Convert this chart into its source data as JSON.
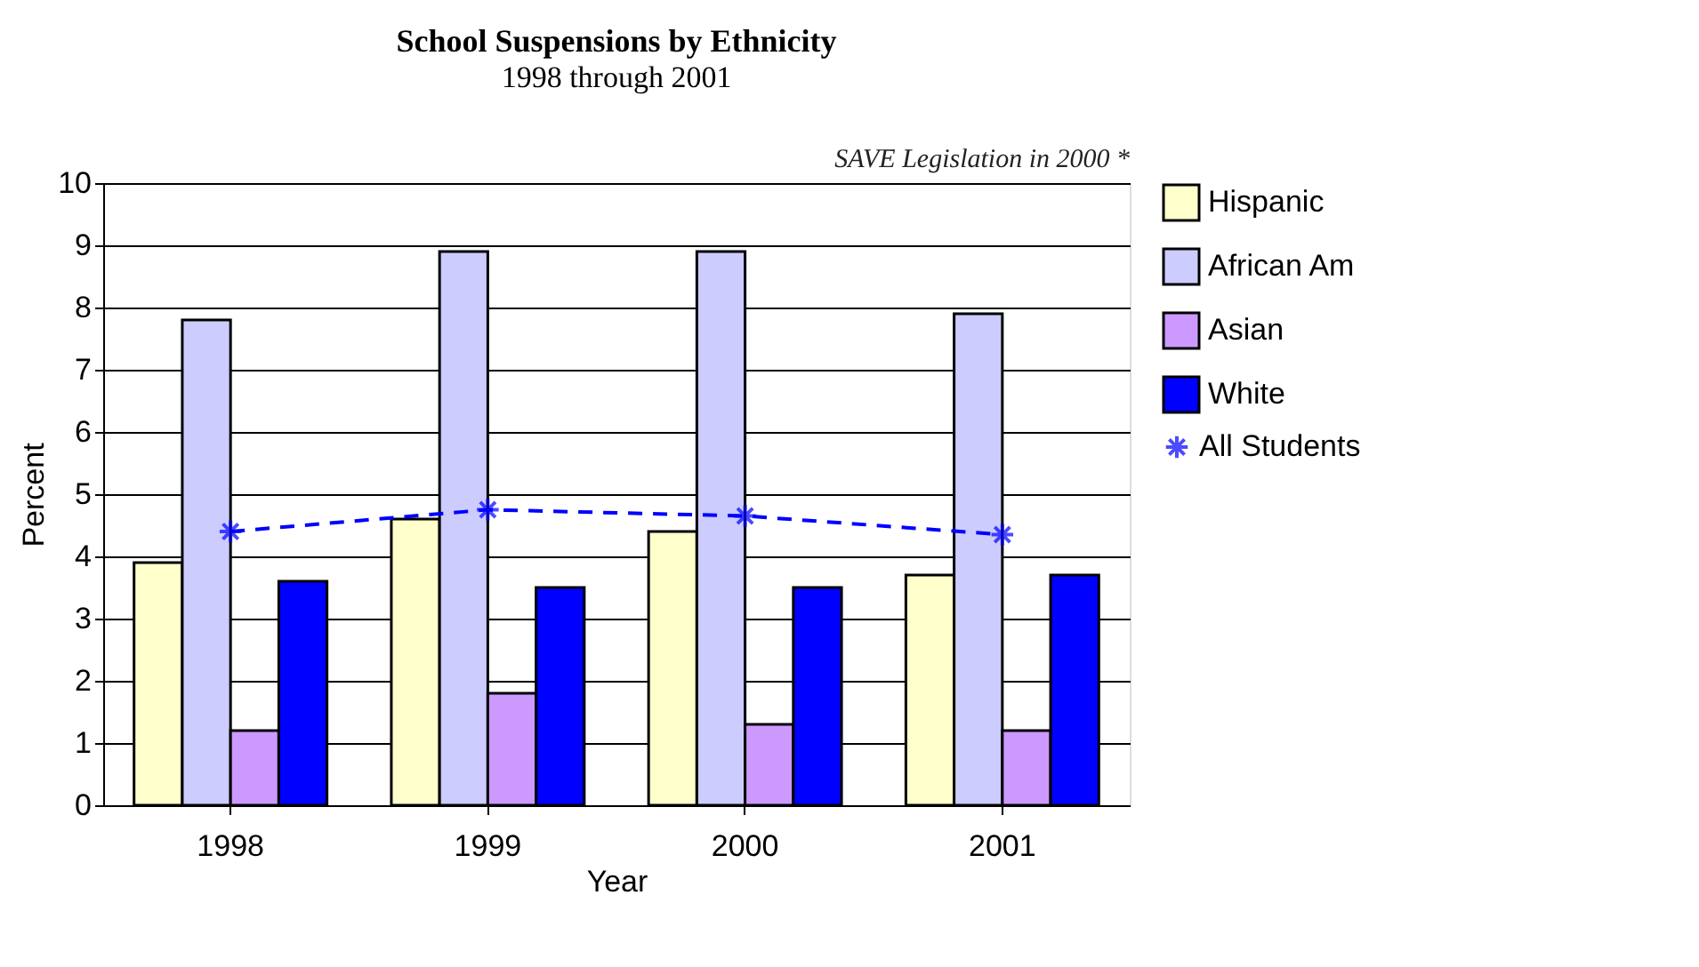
{
  "chart_data": {
    "type": "bar",
    "title": "School Suspensions by Ethnicity",
    "subtitle": "1998 through 2001",
    "xlabel": "Year",
    "ylabel": "Percent",
    "categories": [
      "1998",
      "1999",
      "2000",
      "2001"
    ],
    "series": [
      {
        "name": "Hispanic",
        "color": "#ffffcc",
        "values": [
          3.9,
          4.6,
          4.4,
          3.7
        ]
      },
      {
        "name": "African Am",
        "color": "#ccccff",
        "values": [
          7.8,
          8.9,
          8.9,
          7.9
        ]
      },
      {
        "name": "Asian",
        "color": "#cc99ff",
        "values": [
          1.2,
          1.8,
          1.3,
          1.2
        ]
      },
      {
        "name": "White",
        "color": "#0000ff",
        "values": [
          3.6,
          3.5,
          3.5,
          3.7
        ]
      },
      {
        "name": "All Students",
        "color": "#0000ff",
        "type": "line",
        "marker": "cross",
        "line_style": "dashed",
        "values": [
          4.4,
          4.75,
          4.65,
          4.35
        ]
      }
    ],
    "ylim": [
      0,
      10
    ],
    "yticks": [
      0,
      1,
      2,
      3,
      4,
      5,
      6,
      7,
      8,
      9,
      10
    ],
    "grid": "y",
    "legend": "right",
    "annotations": [
      "SAVE Legislation in 2000 *"
    ]
  }
}
